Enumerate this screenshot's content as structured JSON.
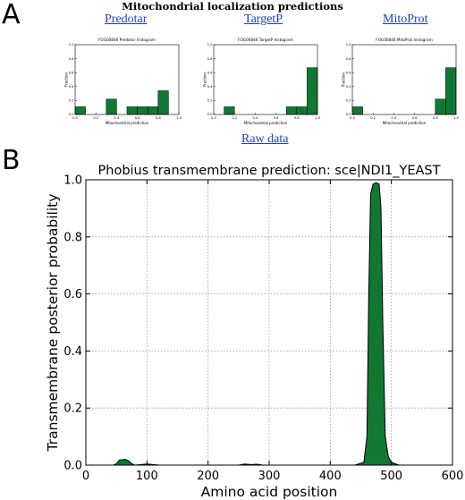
{
  "panel_labels": {
    "a": "A",
    "b": "B"
  },
  "panel_a": {
    "title": "Mitochondrial localization predictions",
    "raw_data_link": "Raw data"
  },
  "colors": {
    "fill": "#117733",
    "link": "#1f3fbf",
    "grid": "#9a9a9a"
  },
  "chart_data": [
    {
      "type": "bar",
      "tool": "Predotar",
      "title": "FOG00846 Predotar histogram",
      "xlabel": "Mitochondrial prediction",
      "ylabel": "Fraction",
      "xlim": [
        0,
        1
      ],
      "ylim": [
        0,
        1
      ],
      "x_ticks": [
        "0.0",
        "0.2",
        "0.4",
        "0.6",
        "0.8",
        "1.0"
      ],
      "y_ticks": [
        "0.0",
        "0.2",
        "0.4",
        "0.6",
        "0.8",
        "1.0"
      ],
      "bin_edges": [
        0.0,
        0.1,
        0.2,
        0.3,
        0.4,
        0.5,
        0.6,
        0.7,
        0.8,
        0.9,
        1.0
      ],
      "values": [
        0.11,
        0.0,
        0.0,
        0.22,
        0.0,
        0.11,
        0.11,
        0.11,
        0.34,
        0.0
      ]
    },
    {
      "type": "bar",
      "tool": "TargetP",
      "title": "FOG00846 TargetP histogram",
      "xlabel": "Mitochondrial prediction",
      "ylabel": "Fraction",
      "xlim": [
        0,
        1
      ],
      "ylim": [
        0,
        1
      ],
      "x_ticks": [
        "0.0",
        "0.2",
        "0.4",
        "0.6",
        "0.8",
        "1.0"
      ],
      "y_ticks": [
        "0.0",
        "0.2",
        "0.4",
        "0.6",
        "0.8",
        "1.0"
      ],
      "bin_edges": [
        0.0,
        0.1,
        0.2,
        0.3,
        0.4,
        0.5,
        0.6,
        0.7,
        0.8,
        0.9,
        1.0
      ],
      "values": [
        0.0,
        0.11,
        0.0,
        0.0,
        0.0,
        0.0,
        0.0,
        0.11,
        0.11,
        0.67
      ]
    },
    {
      "type": "bar",
      "tool": "MitoProt",
      "title": "FOG00846 MitoProt histogram",
      "xlabel": "Mitochondrial prediction",
      "ylabel": "Fraction",
      "xlim": [
        0,
        1
      ],
      "ylim": [
        0,
        1
      ],
      "x_ticks": [
        "0.0",
        "0.2",
        "0.4",
        "0.6",
        "0.8",
        "1.0"
      ],
      "y_ticks": [
        "0.0",
        "0.2",
        "0.4",
        "0.6",
        "0.8",
        "1.0"
      ],
      "bin_edges": [
        0.0,
        0.1,
        0.2,
        0.3,
        0.4,
        0.5,
        0.6,
        0.7,
        0.8,
        0.9,
        1.0
      ],
      "values": [
        0.11,
        0.0,
        0.0,
        0.0,
        0.0,
        0.0,
        0.0,
        0.0,
        0.22,
        0.67
      ]
    },
    {
      "type": "area",
      "title": "Phobius transmembrane prediction: sce|NDI1_YEAST",
      "xlabel": "Amino acid position",
      "ylabel": "Transmembrane posterior probability",
      "xlim": [
        0,
        600
      ],
      "ylim": [
        0,
        1.0
      ],
      "grid": true,
      "x_ticks": [
        "0",
        "100",
        "200",
        "300",
        "400",
        "500",
        "600"
      ],
      "y_ticks": [
        "0.0",
        "0.2",
        "0.4",
        "0.6",
        "0.8",
        "1.0"
      ],
      "x": [
        0,
        45,
        50,
        55,
        65,
        70,
        75,
        80,
        90,
        100,
        110,
        120,
        220,
        250,
        260,
        270,
        280,
        290,
        400,
        440,
        455,
        460,
        463,
        466,
        470,
        475,
        480,
        483,
        486,
        490,
        495,
        500,
        510,
        513
      ],
      "y": [
        0,
        0.0,
        0.005,
        0.018,
        0.02,
        0.015,
        0.005,
        0.0,
        0.002,
        0.004,
        0.002,
        0.0,
        0.0,
        0.0,
        0.004,
        0.002,
        0.003,
        0.0,
        0.0,
        0.0,
        0.01,
        0.1,
        0.6,
        0.95,
        0.985,
        0.99,
        0.985,
        0.9,
        0.5,
        0.1,
        0.03,
        0.01,
        0.002,
        0.0
      ]
    }
  ]
}
